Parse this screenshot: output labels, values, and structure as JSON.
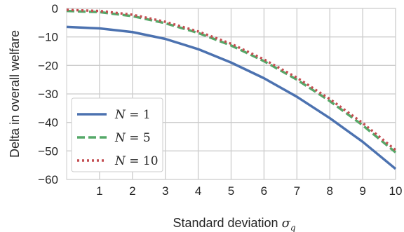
{
  "chart_data": {
    "type": "line",
    "xlabel": "Standard deviation",
    "xlabel_symbol": "σ",
    "xlabel_subscript": "q",
    "ylabel": "Delta in overall welfare",
    "xlim": [
      0,
      10
    ],
    "ylim": [
      -60,
      0
    ],
    "xticks": [
      "1",
      "2",
      "3",
      "4",
      "5",
      "6",
      "7",
      "8",
      "9",
      "10"
    ],
    "yticks": [
      "0",
      "−10",
      "−20",
      "−30",
      "−40",
      "−50",
      "−60"
    ],
    "grid": true,
    "legend_position": "lower-left",
    "x": [
      0,
      1,
      2,
      3,
      4,
      5,
      6,
      7,
      8,
      9,
      10
    ],
    "series": [
      {
        "name": "N = 1",
        "legend_var": "N",
        "legend_val": "1",
        "color": "#4C72B0",
        "style": "solid",
        "values": [
          -6.5,
          -7,
          -8.3,
          -10.7,
          -14.3,
          -19,
          -24.5,
          -31,
          -38.5,
          -46.8,
          -56.3
        ]
      },
      {
        "name": "N = 5",
        "legend_var": "N",
        "legend_val": "5",
        "color": "#55A868",
        "style": "dashed",
        "values": [
          -0.9,
          -1.3,
          -2.7,
          -5.2,
          -8.6,
          -13,
          -18.5,
          -25,
          -32.5,
          -41,
          -50.5
        ]
      },
      {
        "name": "N = 10",
        "legend_var": "N",
        "legend_val": "10",
        "color": "#C44E52",
        "style": "dotted",
        "values": [
          -0.5,
          -0.9,
          -2.2,
          -4.7,
          -8.1,
          -12.4,
          -17.9,
          -24.3,
          -31.8,
          -40.2,
          -49.7
        ]
      }
    ]
  }
}
